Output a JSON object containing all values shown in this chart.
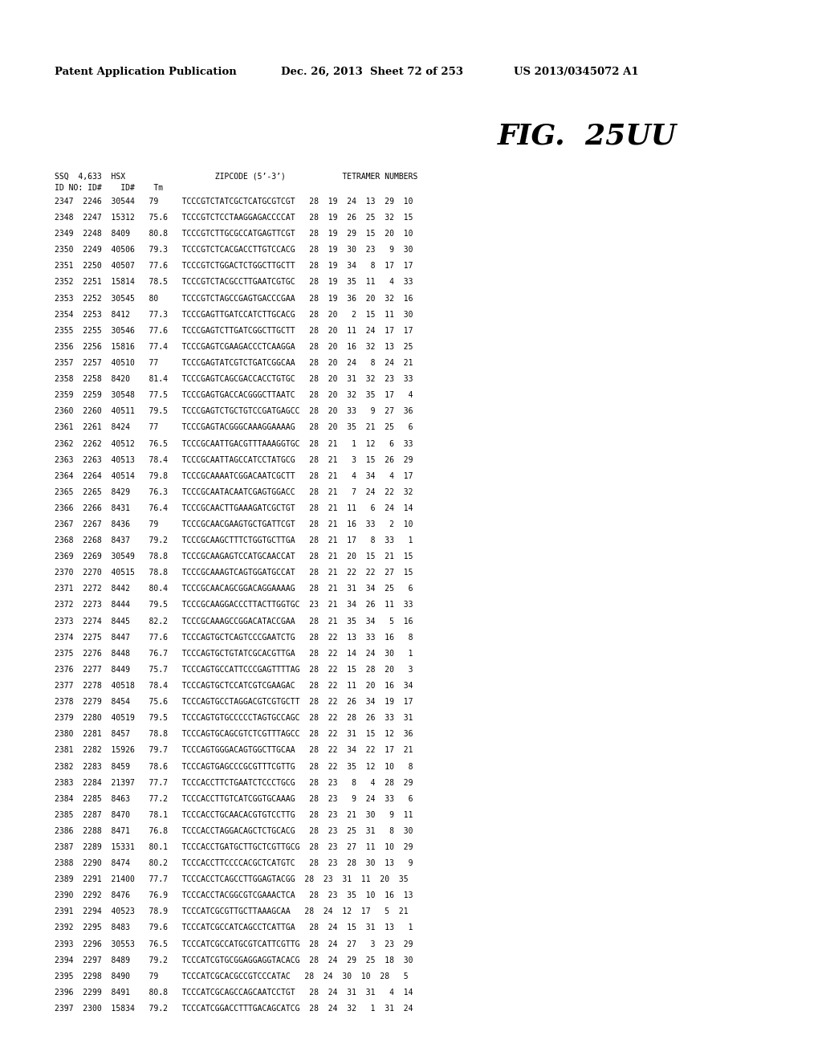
{
  "header_left": "Patent Application Publication",
  "header_middle": "Dec. 26, 2013  Sheet 72 of 253",
  "header_right": "US 2013/0345072 A1",
  "fig_label": "FIG.  25UU",
  "col_header1": "SSQ  4,633  HSX                   ZIPCODE (5’-3’)            TETRAMER NUMBERS",
  "col_header2": "ID NO: ID#    ID#    Tm",
  "rows": [
    "2347  2246  30544   79     TCCCGTCTATCGCTCATGCGTCGT   28  19  24  13  29  10",
    "2348  2247  15312   75.6   TCCCGTCTCCTAAGGAGACCCCAT   28  19  26  25  32  15",
    "2349  2248  8409    80.8   TCCCGTCTTGCGCCATGAGTTCGT   28  19  29  15  20  10",
    "2350  2249  40506   79.3   TCCCGTCTCACGACCTTGTCCACG   28  19  30  23   9  30",
    "2351  2250  40507   77.6   TCCCGTCTGGACTCTGGCTTGCTT   28  19  34   8  17  17",
    "2352  2251  15814   78.5   TCCCGTCTACGCCTTGAATCGTGC   28  19  35  11   4  33",
    "2353  2252  30545   80     TCCCGTCTAGCCGAGTGACCCGAA   28  19  36  20  32  16",
    "2354  2253  8412    77.3   TCCCGAGTTGATCCATCTTGCACG   28  20   2  15  11  30",
    "2355  2255  30546   77.6   TCCCGAGTCTTGATCGGCTTGCTT   28  20  11  24  17  17",
    "2356  2256  15816   77.4   TCCCGAGTCGAAGACCCTCAAGGA   28  20  16  32  13  25",
    "2357  2257  40510   77     TCCCGAGTATCGTCTGATCGGCAA   28  20  24   8  24  21",
    "2358  2258  8420    81.4   TCCCGAGTCAGCGACCACCTGTGC   28  20  31  32  23  33",
    "2359  2259  30548   77.5   TCCCGAGTGACCACGGGCTTAATC   28  20  32  35  17   4",
    "2360  2260  40511   79.5   TCCCGAGTCTGCTGTCCGATGAGCC  28  20  33   9  27  36",
    "2361  2261  8424    77     TCCCGAGTACGGGCAAAGGAAAAG   28  20  35  21  25   6",
    "2362  2262  40512   76.5   TCCCGCAATTGACGTTTAAAGGTGC  28  21   1  12   6  33",
    "2363  2263  40513   78.4   TCCCGCAATTAGCCATCCTATGCG   28  21   3  15  26  29",
    "2364  2264  40514   79.8   TCCCGCAAAATCGGACAATCGCTT   28  21   4  34   4  17",
    "2365  2265  8429    76.3   TCCCGCAATACAATCGAGTGGACC   28  21   7  24  22  32",
    "2366  2266  8431    76.4   TCCCGCAACTTGAAAGATCGCTGT   28  21  11   6  24  14",
    "2367  2267  8436    79     TCCCGCAACGAAGTGCTGATTCGT   28  21  16  33   2  10",
    "2368  2268  8437    79.2   TCCCGCAAGCTTTCTGGTGCTTGA   28  21  17   8  33   1",
    "2369  2269  30549   78.8   TCCCGCAAGAGTCCATGCAACCAT   28  21  20  15  21  15",
    "2370  2270  40515   78.8   TCCCGCAAAGTCAGTGGATGCCAT   28  21  22  22  27  15",
    "2371  2272  8442    80.4   TCCCGCAACAGCGGACAGGAAAAG   28  21  31  34  25   6",
    "2372  2273  8444    79.5   TCCCGCAAGGACCCTTACTTGGTGC  23  21  34  26  11  33",
    "2373  2274  8445    82.2   TCCCGCAAAGCCGGACATACCGAA   28  21  35  34   5  16",
    "2374  2275  8447    77.6   TCCCAGTGCTCAGTCCCGAATCTG   28  22  13  33  16   8",
    "2375  2276  8448    76.7   TCCCAGTGCTGTATCGCACGTTGA   28  22  14  24  30   1",
    "2376  2277  8449    75.7   TCCCAGTGCCATTCCCGAGTTTTAG  28  22  15  28  20   3",
    "2377  2278  40518   78.4   TCCCAGTGCTCCATCGTCGAAGAC   28  22  11  20  16  34",
    "2378  2279  8454    75.6   TCCCAGTGCCTAGGACGTCGTGCTT  28  22  26  34  19  17",
    "2379  2280  40519   79.5   TCCCAGTGTGCCCCCTAGTGCCAGC  28  22  28  26  33  31",
    "2380  2281  8457    78.8   TCCCAGTGCAGCGTCTCGTTTAGCC  28  22  31  15  12  36",
    "2381  2282  15926   79.7   TCCCAGTGGGACAGTGGCTTGCAA   28  22  34  22  17  21",
    "2382  2283  8459    78.6   TCCCAGTGAGCCCGCGTTTCGTTG   28  22  35  12  10   8",
    "2383  2284  21397   77.7   TCCCACCTTCTGAATCTCCCTGCG   28  23   8   4  28  29",
    "2384  2285  8463    77.2   TCCCACCTTGTCATCGGTGCAAAG   28  23   9  24  33   6",
    "2385  2287  8470    78.1   TCCCACCTGCAACACGTGTCCTTG   28  23  21  30   9  11",
    "2386  2288  8471    76.8   TCCCACCTAGGACAGCTCTGCACG   28  23  25  31   8  30",
    "2387  2289  15331   80.1   TCCCACCTGATGCTTGCTCGTTGCG  28  23  27  11  10  29",
    "2388  2290  8474    80.2   TCCCACCTTCCCCACGCTCATGTC   28  23  28  30  13   9",
    "2389  2291  21400   77.7   TCCCACCTCAGCCTTGGAGTACGG  28  23  31  11  20  35",
    "2390  2292  8476    76.9   TCCCACCTACGGCGTCGAAACTCA   28  23  35  10  16  13",
    "2391  2294  40523   78.9   TCCCATCGCGTTGCTTAAAGCAA   28  24  12  17   5  21",
    "2392  2295  8483    79.6   TCCCATCGCCATCAGCCTCATTGA   28  24  15  31  13   1",
    "2393  2296  30553   76.5   TCCCATCGCCATGCGTCATTCGTTG  28  24  27   3  23  29",
    "2394  2297  8489    79.2   TCCCATCGTGCGGAGGAGGTACACG  28  24  29  25  18  30",
    "2395  2298  8490    79     TCCCATCGCACGCCGTCCCATAC   28  24  30  10  28   5",
    "2396  2299  8491    80.8   TCCCATCGCAGCCAGCAATCCTGT   28  24  31  31   4  14",
    "2397  2300  15834   79.2   TCCCATCGGACCTTTGACAGCATCG  28  24  32   1  31  24"
  ]
}
